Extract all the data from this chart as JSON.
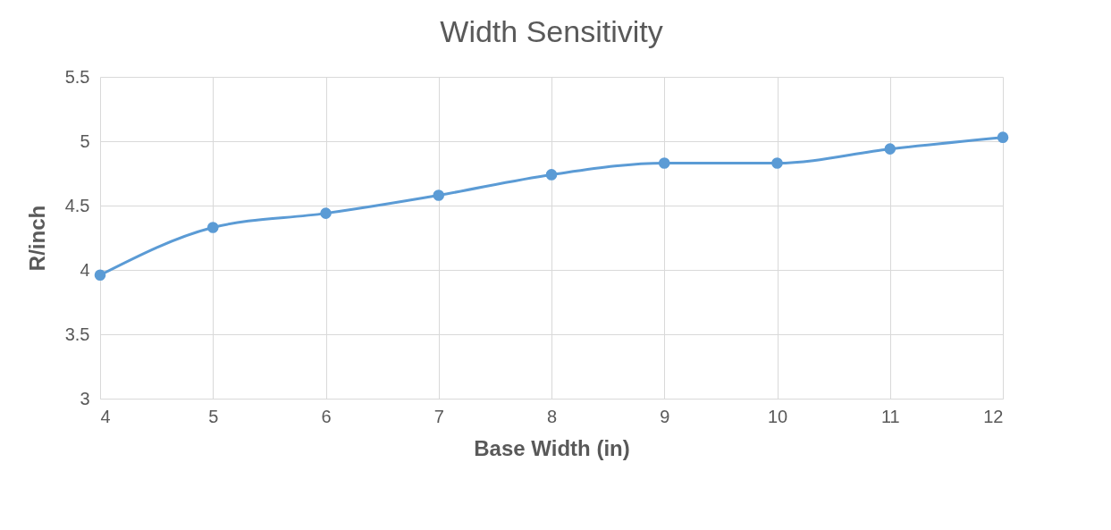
{
  "chart_data": {
    "type": "line",
    "title": "Width Sensitivity",
    "xlabel": "Base Width (in)",
    "ylabel": "R/inch",
    "x": [
      4,
      5,
      6,
      7,
      8,
      9,
      10,
      11,
      12
    ],
    "series": [
      {
        "color": "#5b9bd5",
        "values": [
          3.96,
          4.33,
          4.44,
          4.58,
          4.74,
          4.83,
          4.83,
          4.94,
          5.03
        ]
      }
    ],
    "xlim": [
      4,
      12
    ],
    "xticks": [
      4,
      5,
      6,
      7,
      8,
      9,
      10,
      11,
      12
    ],
    "ylim": [
      3,
      5.5
    ],
    "yticks": [
      3,
      3.5,
      4,
      4.5,
      5,
      5.5
    ],
    "grid": true,
    "marker": "circle",
    "line_style": "solid"
  }
}
